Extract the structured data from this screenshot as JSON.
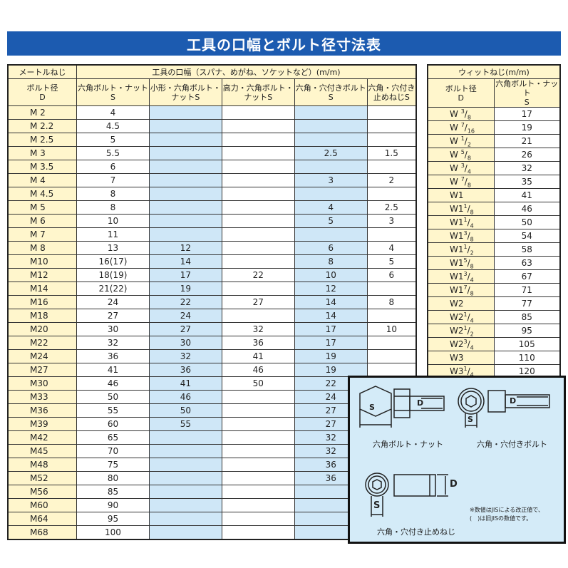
{
  "title": "工具の口幅とボルト径寸法表",
  "metric": {
    "group_label": "メートルねじ",
    "tool_label": "工具の口幅（スパナ、めがね、ソケットなど）(m/m)",
    "headers": [
      "ボルト径\nD",
      "六角ボルト・ナット\nS",
      "小形・六角ボルト・\nナットS",
      "高力・六角ボルト・\nナットS",
      "六角・穴付きボルト\nS",
      "六角・穴付き\n止めねじS"
    ],
    "rows": [
      [
        "M 2",
        "4",
        "",
        "",
        "",
        ""
      ],
      [
        "M 2.2",
        "4.5",
        "",
        "",
        "",
        ""
      ],
      [
        "M 2.5",
        "5",
        "",
        "",
        "",
        ""
      ],
      [
        "M 3",
        "5.5",
        "",
        "",
        "2.5",
        "1.5"
      ],
      [
        "M 3.5",
        "6",
        "",
        "",
        "",
        ""
      ],
      [
        "M 4",
        "7",
        "",
        "",
        "3",
        "2"
      ],
      [
        "M 4.5",
        "8",
        "",
        "",
        "",
        ""
      ],
      [
        "M 5",
        "8",
        "",
        "",
        "4",
        "2.5"
      ],
      [
        "M 6",
        "10",
        "",
        "",
        "5",
        "3"
      ],
      [
        "M 7",
        "11",
        "",
        "",
        "",
        ""
      ],
      [
        "M 8",
        "13",
        "12",
        "",
        "6",
        "4"
      ],
      [
        "M10",
        "16(17)",
        "14",
        "",
        "8",
        "5"
      ],
      [
        "M12",
        "18(19)",
        "17",
        "22",
        "10",
        "6"
      ],
      [
        "M14",
        "21(22)",
        "19",
        "",
        "12",
        ""
      ],
      [
        "M16",
        "24",
        "22",
        "27",
        "14",
        "8"
      ],
      [
        "M18",
        "27",
        "24",
        "",
        "14",
        ""
      ],
      [
        "M20",
        "30",
        "27",
        "32",
        "17",
        "10"
      ],
      [
        "M22",
        "32",
        "30",
        "36",
        "17",
        ""
      ],
      [
        "M24",
        "36",
        "32",
        "41",
        "19",
        ""
      ],
      [
        "M27",
        "41",
        "36",
        "46",
        "19",
        ""
      ],
      [
        "M30",
        "46",
        "41",
        "50",
        "22",
        ""
      ],
      [
        "M33",
        "50",
        "46",
        "",
        "24"
      ],
      [
        "M36",
        "55",
        "50",
        "",
        "27"
      ],
      [
        "M39",
        "60",
        "55",
        "",
        "27"
      ],
      [
        "M42",
        "65",
        "",
        "",
        "32"
      ],
      [
        "M45",
        "70",
        "",
        "",
        "32"
      ],
      [
        "M48",
        "75",
        "",
        "",
        "36"
      ],
      [
        "M52",
        "80",
        "",
        "",
        "36"
      ],
      [
        "M56",
        "85",
        "",
        "",
        ""
      ],
      [
        "M60",
        "90",
        "",
        "",
        ""
      ],
      [
        "M64",
        "95",
        "",
        "",
        ""
      ],
      [
        "M68",
        "100",
        "",
        "",
        ""
      ]
    ]
  },
  "whitworth": {
    "group_label": "ウィットねじ(m/m)",
    "headers": [
      "ボルト径\nD",
      "六角ボルト・ナット\nS"
    ],
    "rows": [
      {
        "w": "W ",
        "n": "3",
        "d": "8",
        "s": "17"
      },
      {
        "w": "W ",
        "n": "7",
        "d": "16",
        "s": "19"
      },
      {
        "w": "W ",
        "n": "1",
        "d": "2",
        "s": "21"
      },
      {
        "w": "W ",
        "n": "5",
        "d": "8",
        "s": "26"
      },
      {
        "w": "W ",
        "n": "3",
        "d": "4",
        "s": "32"
      },
      {
        "w": "W ",
        "n": "7",
        "d": "8",
        "s": "35"
      },
      {
        "w": "W1",
        "n": "",
        "d": "",
        "s": "41"
      },
      {
        "w": "W1",
        "n": "1",
        "d": "8",
        "s": "46"
      },
      {
        "w": "W1",
        "n": "1",
        "d": "4",
        "s": "50"
      },
      {
        "w": "W1",
        "n": "3",
        "d": "8",
        "s": "54"
      },
      {
        "w": "W1",
        "n": "1",
        "d": "2",
        "s": "58"
      },
      {
        "w": "W1",
        "n": "5",
        "d": "8",
        "s": "63"
      },
      {
        "w": "W1",
        "n": "3",
        "d": "4",
        "s": "67"
      },
      {
        "w": "W1",
        "n": "7",
        "d": "8",
        "s": "71"
      },
      {
        "w": "W2",
        "n": "",
        "d": "",
        "s": "77"
      },
      {
        "w": "W2",
        "n": "1",
        "d": "4",
        "s": "85"
      },
      {
        "w": "W2",
        "n": "1",
        "d": "2",
        "s": "95"
      },
      {
        "w": "W2",
        "n": "3",
        "d": "4",
        "s": "105"
      },
      {
        "w": "W3",
        "n": "",
        "d": "",
        "s": "110"
      },
      {
        "w": "W3",
        "n": "1",
        "d": "4",
        "s": "120"
      }
    ]
  },
  "diagram": {
    "caption_hex": "六角ボルト・ナット",
    "caption_socket": "六角・穴付きボルト",
    "caption_setscrew": "六角・穴付き止めねじ",
    "label_s": "S",
    "label_d": "D",
    "note_line1": "※数値はJISによる改正値で、",
    "note_line2": "(　)は旧JISの数値です。"
  },
  "colors": {
    "title_bg": "#1c5bb0",
    "header_bg": "#fff6cc",
    "blue_col": "#cfe7f7",
    "diagram_bg": "#d4ebf8"
  }
}
